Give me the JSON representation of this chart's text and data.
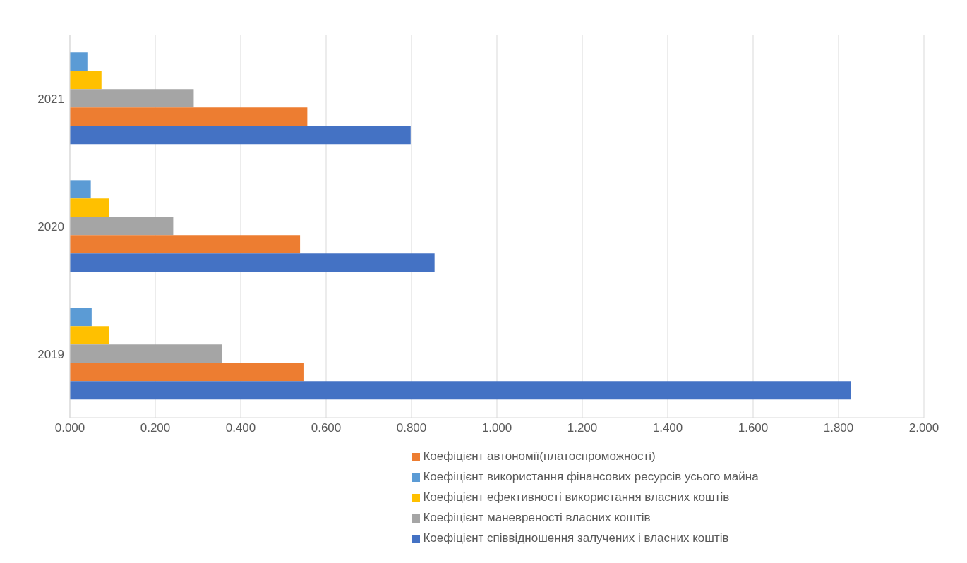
{
  "chart_data": {
    "type": "bar",
    "orientation": "horizontal",
    "categories": [
      "2021",
      "2020",
      "2019"
    ],
    "series": [
      {
        "name": "Коефіцієнт використання фінансових ресурсів усього майна",
        "color": "#5b9bd5",
        "values": [
          0.041,
          0.049,
          0.051
        ]
      },
      {
        "name": "Коефіцієнт ефективності використання власних коштів",
        "color": "#ffc000",
        "values": [
          0.074,
          0.092,
          0.092
        ]
      },
      {
        "name": "Коефіцієнт маневреності власних коштів",
        "color": "#a5a5a5",
        "values": [
          0.29,
          0.242,
          0.356
        ]
      },
      {
        "name": "Коефіцієнт автономії(платоспроможності)",
        "color": "#ed7d31",
        "values": [
          0.556,
          0.539,
          0.547
        ]
      },
      {
        "name": "Коефіцієнт співвідношення залучених і власних коштів",
        "color": "#4472c4",
        "values": [
          0.798,
          0.854,
          1.829
        ]
      }
    ],
    "xlim": [
      0,
      2
    ],
    "xticks": [
      {
        "value": 0,
        "label": "0.000"
      },
      {
        "value": 0.2,
        "label": "0.200"
      },
      {
        "value": 0.4,
        "label": "0.400"
      },
      {
        "value": 0.6,
        "label": "0.600"
      },
      {
        "value": 0.8,
        "label": "0.800"
      },
      {
        "value": 1,
        "label": "1.000"
      },
      {
        "value": 1.2,
        "label": "1.200"
      },
      {
        "value": 1.4,
        "label": "1.400"
      },
      {
        "value": 1.6,
        "label": "1.600"
      },
      {
        "value": 1.8,
        "label": "1.800"
      },
      {
        "value": 2,
        "label": "2.000"
      }
    ],
    "grid": "x",
    "legend": "bottom"
  }
}
